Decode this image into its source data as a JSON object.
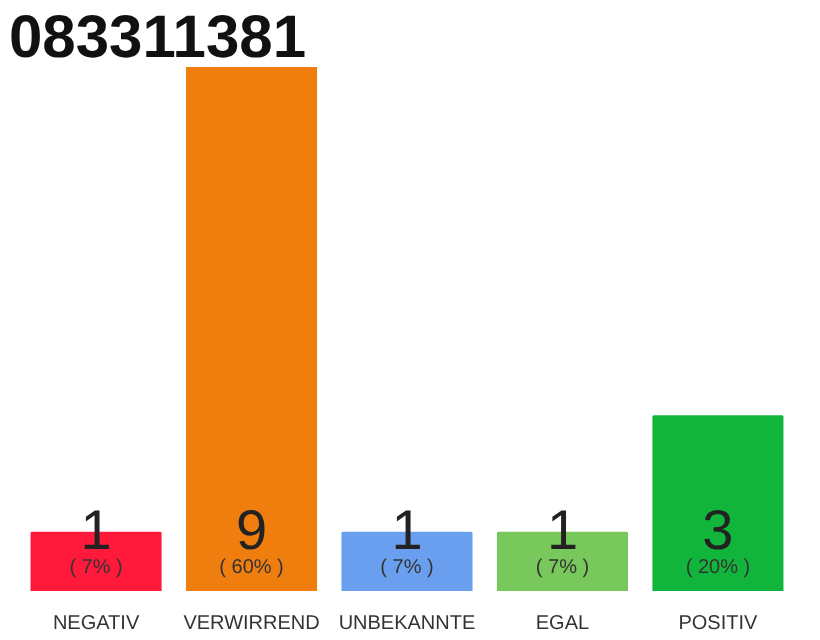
{
  "chart_data": {
    "type": "bar",
    "title": "083311381",
    "categories": [
      "NEGATIV",
      "VERWIRREND",
      "UNBEKANNTE",
      "EGAL",
      "POSITIV"
    ],
    "values": [
      1,
      9,
      1,
      1,
      3
    ],
    "colors": [
      "#ff1a3c",
      "#f07e0e",
      "#6a9ff0",
      "#78c85b",
      "#12b53b"
    ],
    "data_labels": true,
    "annotations": [
      {
        "text": "( 7% )",
        "x": "NEGATIV",
        "y": 0
      },
      {
        "text": "( 60% )",
        "x": "VERWIRREND",
        "y": 0
      },
      {
        "text": "( 7% )",
        "x": "UNBEKANNTE",
        "y": 0
      },
      {
        "text": "( 7% )",
        "x": "EGAL",
        "y": 0
      },
      {
        "text": "( 20% )",
        "x": "POSITIV",
        "y": 0
      }
    ]
  }
}
